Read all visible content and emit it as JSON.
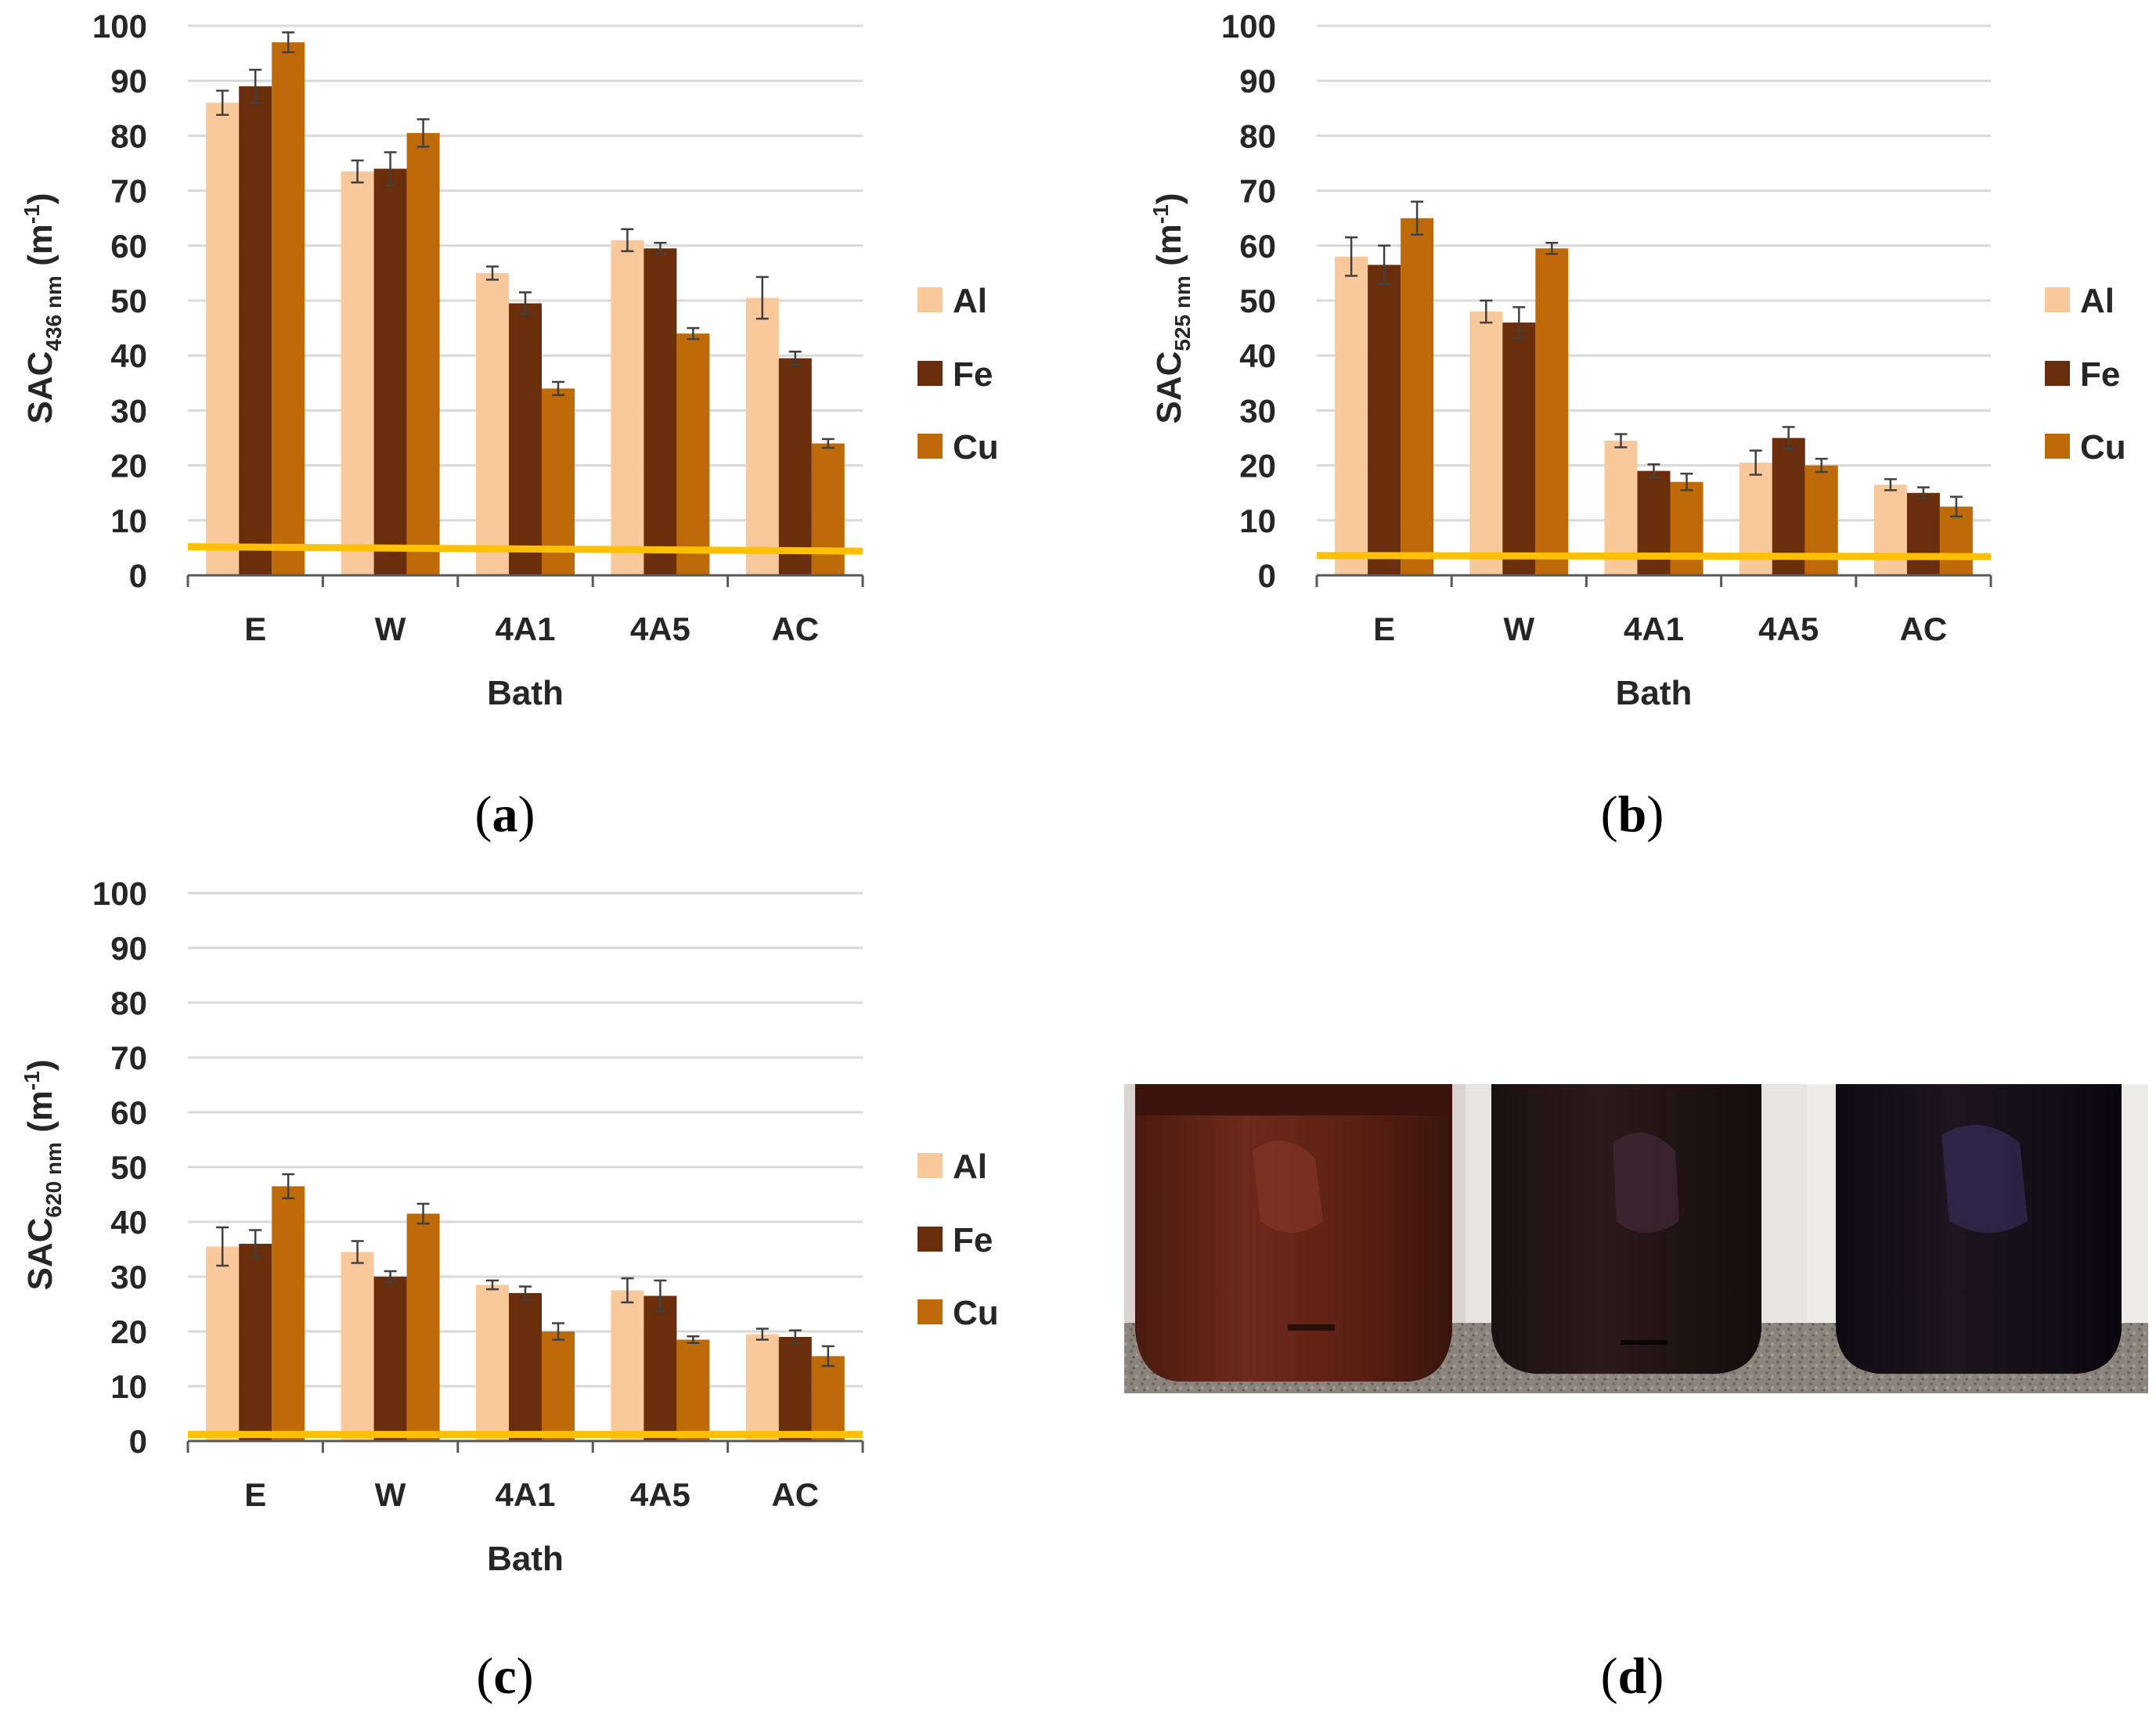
{
  "colors": {
    "Al": "#f9c89b",
    "Fe": "#6b2e0c",
    "Cu": "#bf6a08",
    "threshold": "#ffc000",
    "grid": "#d9d9d9",
    "axis": "#595959",
    "error": "#404040"
  },
  "panels": {
    "a": "a",
    "b": "b",
    "c": "c",
    "d": "d"
  },
  "photo": {
    "icon": "photo-of-three-jars-icon"
  },
  "chart_data": [
    {
      "id": "a",
      "type": "bar",
      "ylabel_main": "SAC",
      "ylabel_sub": "436 nm",
      "ylabel_unit_open": "(m",
      "ylabel_unit_sup": "-1",
      "ylabel_unit_close": ")",
      "xlabel": "Bath",
      "categories": [
        "E",
        "W",
        "4A1",
        "4A5",
        "AC"
      ],
      "yticks": [
        "0",
        "10",
        "20",
        "30",
        "40",
        "50",
        "60",
        "70",
        "80",
        "90",
        "100"
      ],
      "ylim": [
        0,
        100
      ],
      "series": [
        {
          "name": "Al",
          "values": [
            86,
            73.5,
            55,
            61,
            50.5
          ],
          "errors": [
            2.2,
            2.0,
            1.2,
            2.0,
            3.8
          ]
        },
        {
          "name": "Fe",
          "values": [
            89,
            74,
            49.5,
            59.5,
            39.5
          ],
          "errors": [
            3.0,
            3.0,
            2.0,
            1.0,
            1.2
          ]
        },
        {
          "name": "Cu",
          "values": [
            97,
            80.5,
            34,
            44,
            24
          ],
          "errors": [
            1.8,
            2.5,
            1.2,
            1.0,
            0.8
          ]
        }
      ],
      "threshold": [
        5.2,
        4.4
      ],
      "legend_position": "right"
    },
    {
      "id": "b",
      "type": "bar",
      "ylabel_main": "SAC",
      "ylabel_sub": "525 nm",
      "ylabel_unit_open": "(m",
      "ylabel_unit_sup": "-1",
      "ylabel_unit_close": ")",
      "xlabel": "Bath",
      "categories": [
        "E",
        "W",
        "4A1",
        "4A5",
        "AC"
      ],
      "yticks": [
        "0",
        "10",
        "20",
        "30",
        "40",
        "50",
        "60",
        "70",
        "80",
        "90",
        "100"
      ],
      "ylim": [
        0,
        100
      ],
      "series": [
        {
          "name": "Al",
          "values": [
            58,
            48,
            24.5,
            20.5,
            16.5
          ],
          "errors": [
            3.5,
            2.0,
            1.2,
            2.2,
            1.0
          ]
        },
        {
          "name": "Fe",
          "values": [
            56.5,
            46,
            19,
            25,
            15
          ],
          "errors": [
            3.5,
            2.8,
            1.2,
            2.0,
            1.0
          ]
        },
        {
          "name": "Cu",
          "values": [
            65,
            59.5,
            17,
            20,
            12.5
          ],
          "errors": [
            3.0,
            1.0,
            1.5,
            1.2,
            1.8
          ]
        }
      ],
      "threshold": [
        3.6,
        3.4
      ],
      "legend_position": "right"
    },
    {
      "id": "c",
      "type": "bar",
      "ylabel_main": "SAC",
      "ylabel_sub": "620 nm",
      "ylabel_unit_open": "(m",
      "ylabel_unit_sup": "-1",
      "ylabel_unit_close": ")",
      "xlabel": "Bath",
      "categories": [
        "E",
        "W",
        "4A1",
        "4A5",
        "AC"
      ],
      "yticks": [
        "0",
        "10",
        "20",
        "30",
        "40",
        "50",
        "60",
        "70",
        "80",
        "90",
        "100"
      ],
      "ylim": [
        0,
        100
      ],
      "series": [
        {
          "name": "Al",
          "values": [
            35.5,
            34.5,
            28.5,
            27.5,
            19.5
          ],
          "errors": [
            3.5,
            2.0,
            0.8,
            2.2,
            1.0
          ]
        },
        {
          "name": "Fe",
          "values": [
            36,
            30,
            27,
            26.5,
            19
          ],
          "errors": [
            2.5,
            1.0,
            1.2,
            2.8,
            1.2
          ]
        },
        {
          "name": "Cu",
          "values": [
            46.5,
            41.5,
            20,
            18.5,
            15.5
          ],
          "errors": [
            2.2,
            1.8,
            1.5,
            0.6,
            1.8
          ]
        }
      ],
      "threshold": [
        1.2,
        1.2
      ],
      "legend_position": "right"
    }
  ]
}
